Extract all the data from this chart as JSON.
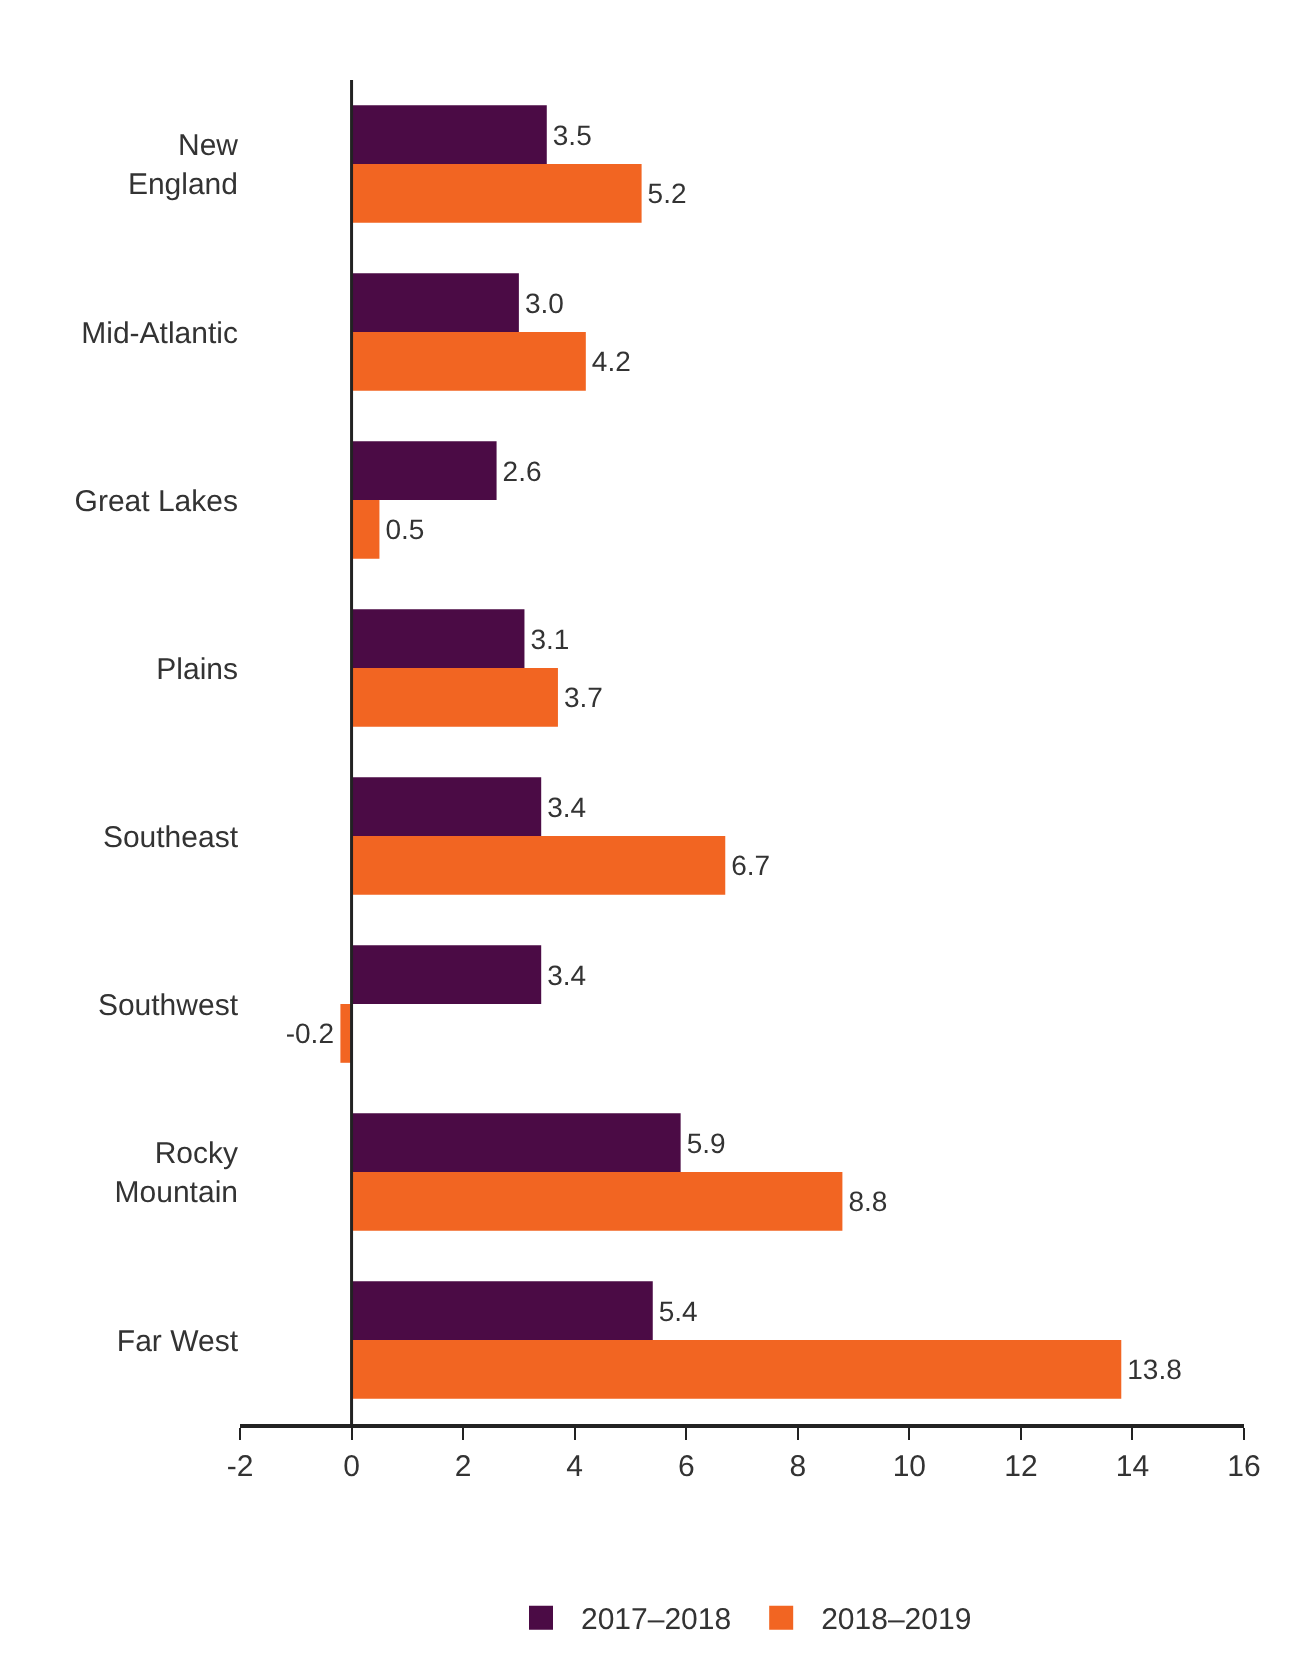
{
  "chart_data": {
    "type": "bar",
    "orientation": "horizontal",
    "categories": [
      "New\nEngland",
      "Mid-Atlantic",
      "Great Lakes",
      "Plains",
      "Southeast",
      "Southwest",
      "Rocky\nMountain",
      "Far West"
    ],
    "series": [
      {
        "name": "2017–2018",
        "color": "#4b0b45",
        "values": [
          3.5,
          3.0,
          2.6,
          3.1,
          3.4,
          3.4,
          5.9,
          5.4
        ],
        "value_labels": [
          "3.5",
          "3.0",
          "2.6",
          "3.1",
          "3.4",
          "3.4",
          "5.9",
          "5.4"
        ]
      },
      {
        "name": "2018–2019",
        "color": "#f26522",
        "values": [
          5.2,
          4.2,
          0.5,
          3.7,
          6.7,
          -0.2,
          8.8,
          13.8
        ],
        "value_labels": [
          "5.2",
          "4.2",
          "0.5",
          "3.7",
          "6.7",
          "-0.2",
          "8.8",
          "13.8"
        ]
      }
    ],
    "xlim": [
      -2,
      16
    ],
    "xticks": [
      -2,
      0,
      2,
      4,
      6,
      8,
      10,
      12,
      14,
      16
    ],
    "ref_lines": [
      {
        "axis": "x",
        "value": 0,
        "color": "#222222"
      }
    ],
    "legend": "bottom"
  }
}
